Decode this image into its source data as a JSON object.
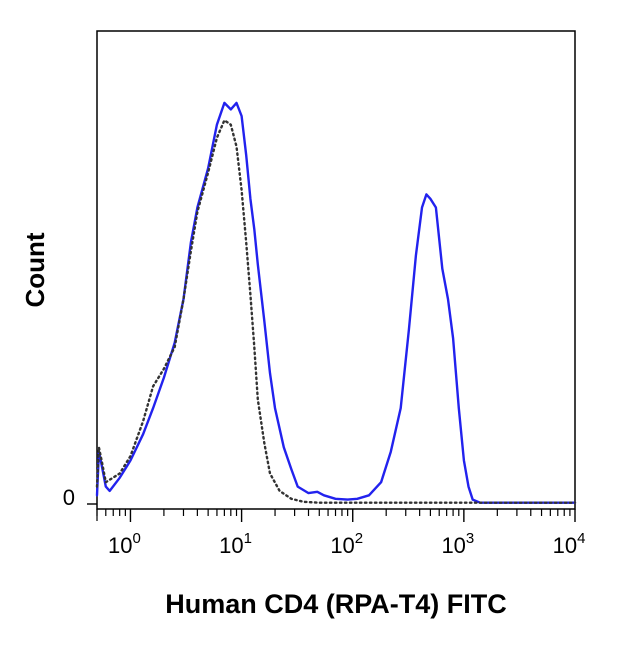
{
  "chart_data": {
    "type": "line",
    "title": "",
    "xlabel": "Human CD4 (RPA-T4) FITC",
    "ylabel": "Count",
    "x_scale": "log",
    "xlim": [
      0.5,
      10000
    ],
    "ylim": [
      0,
      1.0
    ],
    "x_ticks": [
      {
        "base": "10",
        "exp": "0",
        "value": 1
      },
      {
        "base": "10",
        "exp": "1",
        "value": 10
      },
      {
        "base": "10",
        "exp": "2",
        "value": 100
      },
      {
        "base": "10",
        "exp": "3",
        "value": 1000
      },
      {
        "base": "10",
        "exp": "4",
        "value": 10000
      }
    ],
    "y_ticks": [
      {
        "label": "0",
        "value": 0
      }
    ],
    "grid": false,
    "series": [
      {
        "color": "#2222ee",
        "style": "solid",
        "points": [
          [
            0.5,
            0.02
          ],
          [
            0.52,
            0.12
          ],
          [
            0.55,
            0.09
          ],
          [
            0.6,
            0.04
          ],
          [
            0.65,
            0.03
          ],
          [
            0.8,
            0.06
          ],
          [
            1.0,
            0.1
          ],
          [
            1.3,
            0.16
          ],
          [
            1.6,
            0.22
          ],
          [
            2.0,
            0.29
          ],
          [
            2.5,
            0.37
          ],
          [
            3.0,
            0.47
          ],
          [
            3.5,
            0.6
          ],
          [
            4.0,
            0.68
          ],
          [
            5.0,
            0.77
          ],
          [
            6.0,
            0.87
          ],
          [
            7.0,
            0.92
          ],
          [
            8.0,
            0.905
          ],
          [
            9.0,
            0.92
          ],
          [
            10.0,
            0.89
          ],
          [
            11.0,
            0.8
          ],
          [
            12.0,
            0.7
          ],
          [
            13.0,
            0.63
          ],
          [
            14.0,
            0.55
          ],
          [
            16.0,
            0.42
          ],
          [
            18.0,
            0.3
          ],
          [
            20.0,
            0.22
          ],
          [
            24.0,
            0.13
          ],
          [
            28.0,
            0.08
          ],
          [
            32.0,
            0.04
          ],
          [
            40.0,
            0.025
          ],
          [
            48.0,
            0.028
          ],
          [
            55.0,
            0.02
          ],
          [
            70.0,
            0.012
          ],
          [
            90.0,
            0.01
          ],
          [
            110.0,
            0.012
          ],
          [
            140.0,
            0.02
          ],
          [
            180.0,
            0.05
          ],
          [
            220.0,
            0.12
          ],
          [
            270.0,
            0.22
          ],
          [
            320.0,
            0.4
          ],
          [
            370.0,
            0.57
          ],
          [
            420.0,
            0.68
          ],
          [
            460.0,
            0.71
          ],
          [
            500.0,
            0.7
          ],
          [
            560.0,
            0.68
          ],
          [
            640.0,
            0.54
          ],
          [
            720.0,
            0.47
          ],
          [
            800.0,
            0.38
          ],
          [
            900.0,
            0.22
          ],
          [
            1000.0,
            0.1
          ],
          [
            1100.0,
            0.04
          ],
          [
            1200.0,
            0.01
          ],
          [
            1400.0,
            0.003
          ],
          [
            10000.0,
            0.003
          ]
        ]
      },
      {
        "color": "#333333",
        "style": "dotted",
        "points": [
          [
            0.5,
            0.04
          ],
          [
            0.52,
            0.13
          ],
          [
            0.55,
            0.1
          ],
          [
            0.6,
            0.05
          ],
          [
            0.8,
            0.07
          ],
          [
            1.0,
            0.11
          ],
          [
            1.3,
            0.19
          ],
          [
            1.6,
            0.27
          ],
          [
            2.0,
            0.31
          ],
          [
            2.5,
            0.36
          ],
          [
            3.0,
            0.47
          ],
          [
            3.5,
            0.58
          ],
          [
            4.0,
            0.67
          ],
          [
            5.0,
            0.76
          ],
          [
            6.0,
            0.84
          ],
          [
            7.0,
            0.88
          ],
          [
            8.0,
            0.87
          ],
          [
            9.0,
            0.82
          ],
          [
            10.0,
            0.72
          ],
          [
            11.0,
            0.6
          ],
          [
            12.0,
            0.48
          ],
          [
            13.0,
            0.36
          ],
          [
            14.0,
            0.24
          ],
          [
            16.0,
            0.14
          ],
          [
            18.0,
            0.07
          ],
          [
            22.0,
            0.03
          ],
          [
            28.0,
            0.012
          ],
          [
            36.0,
            0.005
          ],
          [
            50.0,
            0.003
          ],
          [
            10000.0,
            0.003
          ]
        ]
      }
    ]
  }
}
